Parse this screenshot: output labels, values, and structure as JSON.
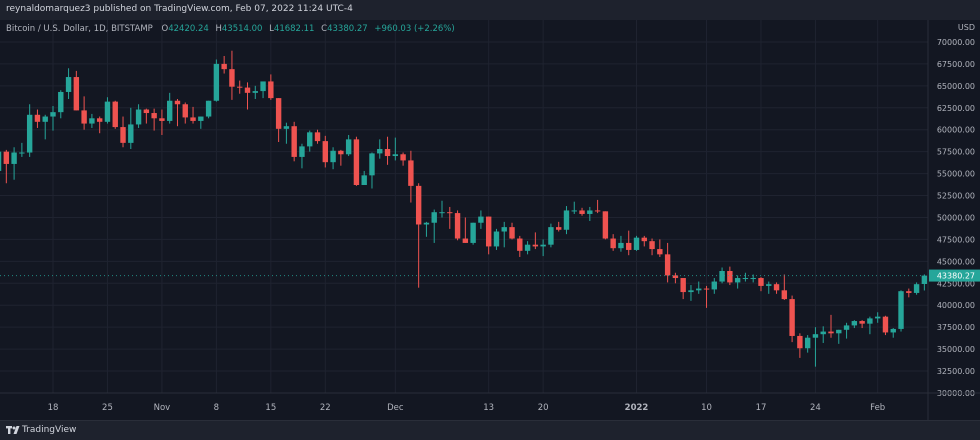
{
  "header": {
    "published_text": "reynaldomarquez3 published on TradingView.com, Feb 07, 2022 11:24 UTC-4"
  },
  "legend": {
    "symbol": "Bitcoin / U.S. Dollar, 1D, BITSTAMP",
    "open_label": "O",
    "open": "42420.24",
    "high_label": "H",
    "high": "43514.00",
    "low_label": "L",
    "low": "41682.11",
    "close_label": "C",
    "close": "43380.27",
    "change": "+960.03 (+2.26%)"
  },
  "footer": {
    "brand": "TradingView"
  },
  "colors": {
    "up": "#26a69a",
    "down": "#ef5350",
    "background": "#131722",
    "grid": "#1f2330",
    "axis_text": "#b2b5be",
    "price_tag": "#26a69a"
  },
  "chart_data": {
    "type": "candlestick",
    "title": "Bitcoin / U.S. Dollar, 1D, BITSTAMP",
    "currency_label": "USD",
    "last_price": "43380.27",
    "y_ticks": [
      "70000.00",
      "67500.00",
      "65000.00",
      "62500.00",
      "60000.00",
      "57500.00",
      "55000.00",
      "52500.00",
      "50000.00",
      "47500.00",
      "45000.00",
      "42500.00",
      "40000.00",
      "37500.00",
      "35000.00",
      "32500.00",
      "30000.00"
    ],
    "ylim": [
      30000,
      72500
    ],
    "x_ticks": [
      "18",
      "25",
      "Nov",
      "8",
      "15",
      "22",
      "Dec",
      "13",
      "20",
      "2022",
      "10",
      "17",
      "24",
      "Feb"
    ],
    "grid": true,
    "candles": [
      {
        "date": "2021-10-11",
        "o": 55300,
        "h": 57800,
        "l": 54400,
        "c": 57500
      },
      {
        "date": "2021-10-12",
        "o": 57500,
        "h": 57700,
        "l": 53900,
        "c": 56100
      },
      {
        "date": "2021-10-13",
        "o": 56100,
        "h": 58000,
        "l": 54300,
        "c": 57400
      },
      {
        "date": "2021-10-14",
        "o": 57400,
        "h": 58500,
        "l": 56900,
        "c": 57400
      },
      {
        "date": "2021-10-15",
        "o": 57400,
        "h": 62900,
        "l": 56900,
        "c": 61700
      },
      {
        "date": "2021-10-16",
        "o": 61700,
        "h": 62300,
        "l": 60200,
        "c": 60900
      },
      {
        "date": "2021-10-17",
        "o": 60900,
        "h": 61700,
        "l": 58900,
        "c": 61500
      },
      {
        "date": "2021-10-18",
        "o": 61500,
        "h": 62700,
        "l": 59900,
        "c": 62000
      },
      {
        "date": "2021-10-19",
        "o": 62000,
        "h": 64500,
        "l": 61300,
        "c": 64300
      },
      {
        "date": "2021-10-20",
        "o": 64300,
        "h": 67000,
        "l": 63500,
        "c": 66000
      },
      {
        "date": "2021-10-21",
        "o": 66000,
        "h": 66700,
        "l": 62200,
        "c": 62200
      },
      {
        "date": "2021-10-22",
        "o": 62200,
        "h": 63800,
        "l": 60000,
        "c": 60700
      },
      {
        "date": "2021-10-23",
        "o": 60700,
        "h": 61800,
        "l": 60200,
        "c": 61300
      },
      {
        "date": "2021-10-24",
        "o": 61300,
        "h": 61500,
        "l": 59600,
        "c": 60900
      },
      {
        "date": "2021-10-25",
        "o": 60900,
        "h": 63700,
        "l": 60700,
        "c": 63200
      },
      {
        "date": "2021-10-26",
        "o": 63200,
        "h": 63300,
        "l": 60100,
        "c": 60300
      },
      {
        "date": "2021-10-27",
        "o": 60300,
        "h": 61500,
        "l": 58000,
        "c": 58500
      },
      {
        "date": "2021-10-28",
        "o": 58500,
        "h": 62500,
        "l": 57800,
        "c": 60600
      },
      {
        "date": "2021-10-29",
        "o": 60600,
        "h": 62900,
        "l": 60200,
        "c": 62300
      },
      {
        "date": "2021-10-30",
        "o": 62300,
        "h": 62400,
        "l": 60700,
        "c": 61900
      },
      {
        "date": "2021-10-31",
        "o": 61900,
        "h": 62400,
        "l": 59900,
        "c": 61300
      },
      {
        "date": "2021-11-01",
        "o": 61300,
        "h": 62300,
        "l": 59400,
        "c": 61000
      },
      {
        "date": "2021-11-02",
        "o": 61000,
        "h": 64200,
        "l": 60700,
        "c": 63300
      },
      {
        "date": "2021-11-03",
        "o": 63300,
        "h": 63500,
        "l": 60400,
        "c": 62900
      },
      {
        "date": "2021-11-04",
        "o": 62900,
        "h": 63100,
        "l": 60700,
        "c": 61400
      },
      {
        "date": "2021-11-05",
        "o": 61400,
        "h": 62600,
        "l": 60700,
        "c": 61000
      },
      {
        "date": "2021-11-06",
        "o": 61000,
        "h": 61500,
        "l": 60100,
        "c": 61500
      },
      {
        "date": "2021-11-07",
        "o": 61500,
        "h": 63300,
        "l": 61300,
        "c": 63300
      },
      {
        "date": "2021-11-08",
        "o": 63300,
        "h": 68000,
        "l": 63200,
        "c": 67500
      },
      {
        "date": "2021-11-09",
        "o": 67500,
        "h": 68400,
        "l": 66400,
        "c": 66900
      },
      {
        "date": "2021-11-10",
        "o": 66900,
        "h": 69000,
        "l": 63400,
        "c": 64900
      },
      {
        "date": "2021-11-11",
        "o": 64900,
        "h": 65600,
        "l": 64100,
        "c": 64800
      },
      {
        "date": "2021-11-12",
        "o": 64800,
        "h": 65400,
        "l": 62300,
        "c": 64200
      },
      {
        "date": "2021-11-13",
        "o": 64200,
        "h": 65000,
        "l": 63500,
        "c": 64400
      },
      {
        "date": "2021-11-14",
        "o": 64400,
        "h": 65300,
        "l": 63600,
        "c": 65500
      },
      {
        "date": "2021-11-15",
        "o": 65500,
        "h": 66300,
        "l": 63400,
        "c": 63600
      },
      {
        "date": "2021-11-16",
        "o": 63600,
        "h": 63600,
        "l": 58600,
        "c": 60100
      },
      {
        "date": "2021-11-17",
        "o": 60100,
        "h": 60800,
        "l": 58400,
        "c": 60400
      },
      {
        "date": "2021-11-18",
        "o": 60400,
        "h": 60900,
        "l": 56400,
        "c": 56900
      },
      {
        "date": "2021-11-19",
        "o": 56900,
        "h": 58400,
        "l": 55600,
        "c": 58100
      },
      {
        "date": "2021-11-20",
        "o": 58100,
        "h": 59900,
        "l": 57500,
        "c": 59700
      },
      {
        "date": "2021-11-21",
        "o": 59700,
        "h": 60000,
        "l": 58400,
        "c": 58700
      },
      {
        "date": "2021-11-22",
        "o": 58700,
        "h": 59300,
        "l": 55700,
        "c": 56300
      },
      {
        "date": "2021-11-23",
        "o": 56300,
        "h": 58000,
        "l": 55500,
        "c": 57600
      },
      {
        "date": "2021-11-24",
        "o": 57600,
        "h": 57700,
        "l": 55900,
        "c": 57200
      },
      {
        "date": "2021-11-25",
        "o": 57200,
        "h": 59400,
        "l": 57000,
        "c": 58900
      },
      {
        "date": "2021-11-26",
        "o": 58900,
        "h": 59200,
        "l": 53600,
        "c": 53700
      },
      {
        "date": "2021-11-27",
        "o": 53700,
        "h": 55300,
        "l": 53700,
        "c": 54800
      },
      {
        "date": "2021-11-28",
        "o": 54800,
        "h": 57400,
        "l": 53300,
        "c": 57300
      },
      {
        "date": "2021-11-29",
        "o": 57300,
        "h": 58900,
        "l": 56700,
        "c": 57800
      },
      {
        "date": "2021-11-30",
        "o": 57800,
        "h": 59200,
        "l": 56000,
        "c": 57000
      },
      {
        "date": "2021-12-01",
        "o": 57000,
        "h": 59100,
        "l": 56500,
        "c": 57200
      },
      {
        "date": "2021-12-02",
        "o": 57200,
        "h": 57400,
        "l": 55900,
        "c": 56500
      },
      {
        "date": "2021-12-03",
        "o": 56500,
        "h": 57600,
        "l": 51700,
        "c": 53600
      },
      {
        "date": "2021-12-04",
        "o": 53600,
        "h": 53900,
        "l": 42000,
        "c": 49200
      },
      {
        "date": "2021-12-05",
        "o": 49200,
        "h": 49500,
        "l": 47800,
        "c": 49400
      },
      {
        "date": "2021-12-06",
        "o": 49400,
        "h": 50900,
        "l": 47100,
        "c": 50600
      },
      {
        "date": "2021-12-07",
        "o": 50600,
        "h": 51900,
        "l": 50000,
        "c": 50600
      },
      {
        "date": "2021-12-08",
        "o": 50600,
        "h": 51200,
        "l": 48700,
        "c": 50500
      },
      {
        "date": "2021-12-09",
        "o": 50500,
        "h": 50800,
        "l": 47400,
        "c": 47600
      },
      {
        "date": "2021-12-10",
        "o": 47600,
        "h": 50000,
        "l": 47100,
        "c": 47100
      },
      {
        "date": "2021-12-11",
        "o": 47100,
        "h": 49400,
        "l": 46900,
        "c": 49400
      },
      {
        "date": "2021-12-12",
        "o": 49400,
        "h": 50800,
        "l": 48700,
        "c": 50100
      },
      {
        "date": "2021-12-13",
        "o": 50100,
        "h": 50100,
        "l": 45800,
        "c": 46700
      },
      {
        "date": "2021-12-14",
        "o": 46700,
        "h": 48700,
        "l": 46300,
        "c": 48400
      },
      {
        "date": "2021-12-15",
        "o": 48400,
        "h": 49500,
        "l": 46600,
        "c": 48900
      },
      {
        "date": "2021-12-16",
        "o": 48900,
        "h": 49400,
        "l": 47500,
        "c": 47600
      },
      {
        "date": "2021-12-17",
        "o": 47600,
        "h": 47900,
        "l": 45500,
        "c": 46200
      },
      {
        "date": "2021-12-18",
        "o": 46200,
        "h": 47300,
        "l": 45800,
        "c": 46900
      },
      {
        "date": "2021-12-19",
        "o": 46900,
        "h": 48300,
        "l": 46400,
        "c": 46700
      },
      {
        "date": "2021-12-20",
        "o": 46700,
        "h": 47500,
        "l": 45600,
        "c": 46900
      },
      {
        "date": "2021-12-21",
        "o": 46900,
        "h": 49300,
        "l": 46600,
        "c": 48900
      },
      {
        "date": "2021-12-22",
        "o": 48900,
        "h": 49500,
        "l": 48400,
        "c": 48600
      },
      {
        "date": "2021-12-23",
        "o": 48600,
        "h": 51300,
        "l": 48100,
        "c": 50800
      },
      {
        "date": "2021-12-24",
        "o": 50800,
        "h": 51800,
        "l": 50400,
        "c": 50800
      },
      {
        "date": "2021-12-25",
        "o": 50800,
        "h": 51100,
        "l": 50200,
        "c": 50400
      },
      {
        "date": "2021-12-26",
        "o": 50400,
        "h": 51200,
        "l": 49600,
        "c": 50800
      },
      {
        "date": "2021-12-27",
        "o": 50800,
        "h": 52000,
        "l": 50500,
        "c": 50700
      },
      {
        "date": "2021-12-28",
        "o": 50700,
        "h": 50700,
        "l": 47500,
        "c": 47600
      },
      {
        "date": "2021-12-29",
        "o": 47600,
        "h": 48100,
        "l": 46200,
        "c": 46500
      },
      {
        "date": "2021-12-30",
        "o": 46500,
        "h": 47900,
        "l": 46100,
        "c": 47100
      },
      {
        "date": "2021-12-31",
        "o": 47100,
        "h": 48500,
        "l": 45700,
        "c": 46300
      },
      {
        "date": "2022-01-01",
        "o": 46300,
        "h": 47900,
        "l": 46200,
        "c": 47700
      },
      {
        "date": "2022-01-02",
        "o": 47700,
        "h": 47900,
        "l": 46700,
        "c": 47300
      },
      {
        "date": "2022-01-03",
        "o": 47300,
        "h": 47600,
        "l": 45700,
        "c": 46400
      },
      {
        "date": "2022-01-04",
        "o": 46400,
        "h": 47500,
        "l": 45500,
        "c": 45800
      },
      {
        "date": "2022-01-05",
        "o": 45800,
        "h": 47100,
        "l": 42600,
        "c": 43400
      },
      {
        "date": "2022-01-06",
        "o": 43400,
        "h": 43700,
        "l": 42500,
        "c": 43100
      },
      {
        "date": "2022-01-07",
        "o": 43100,
        "h": 43100,
        "l": 40700,
        "c": 41500
      },
      {
        "date": "2022-01-08",
        "o": 41500,
        "h": 42300,
        "l": 40500,
        "c": 41700
      },
      {
        "date": "2022-01-09",
        "o": 41700,
        "h": 42700,
        "l": 41300,
        "c": 41900
      },
      {
        "date": "2022-01-10",
        "o": 41900,
        "h": 42200,
        "l": 39700,
        "c": 41800
      },
      {
        "date": "2022-01-11",
        "o": 41800,
        "h": 43100,
        "l": 41300,
        "c": 42700
      },
      {
        "date": "2022-01-12",
        "o": 42700,
        "h": 44300,
        "l": 42500,
        "c": 43900
      },
      {
        "date": "2022-01-13",
        "o": 43900,
        "h": 44400,
        "l": 42300,
        "c": 42600
      },
      {
        "date": "2022-01-14",
        "o": 42600,
        "h": 43400,
        "l": 41900,
        "c": 43100
      },
      {
        "date": "2022-01-15",
        "o": 43100,
        "h": 43700,
        "l": 42700,
        "c": 43100
      },
      {
        "date": "2022-01-16",
        "o": 43100,
        "h": 43500,
        "l": 42600,
        "c": 43100
      },
      {
        "date": "2022-01-17",
        "o": 43100,
        "h": 43200,
        "l": 41600,
        "c": 42200
      },
      {
        "date": "2022-01-18",
        "o": 42200,
        "h": 42700,
        "l": 41300,
        "c": 42400
      },
      {
        "date": "2022-01-19",
        "o": 42400,
        "h": 42600,
        "l": 41300,
        "c": 41700
      },
      {
        "date": "2022-01-20",
        "o": 41700,
        "h": 43500,
        "l": 40600,
        "c": 40700
      },
      {
        "date": "2022-01-21",
        "o": 40700,
        "h": 41100,
        "l": 35800,
        "c": 36500
      },
      {
        "date": "2022-01-22",
        "o": 36500,
        "h": 36800,
        "l": 34000,
        "c": 35100
      },
      {
        "date": "2022-01-23",
        "o": 35100,
        "h": 36600,
        "l": 34600,
        "c": 36300
      },
      {
        "date": "2022-01-24",
        "o": 36300,
        "h": 37500,
        "l": 33000,
        "c": 36700
      },
      {
        "date": "2022-01-25",
        "o": 36700,
        "h": 37600,
        "l": 35700,
        "c": 37000
      },
      {
        "date": "2022-01-26",
        "o": 37000,
        "h": 38900,
        "l": 36300,
        "c": 36800
      },
      {
        "date": "2022-01-27",
        "o": 36800,
        "h": 37200,
        "l": 35600,
        "c": 37200
      },
      {
        "date": "2022-01-28",
        "o": 37200,
        "h": 38000,
        "l": 36200,
        "c": 37700
      },
      {
        "date": "2022-01-29",
        "o": 37700,
        "h": 38300,
        "l": 37400,
        "c": 38200
      },
      {
        "date": "2022-01-30",
        "o": 38200,
        "h": 38300,
        "l": 37400,
        "c": 37900
      },
      {
        "date": "2022-01-31",
        "o": 37900,
        "h": 38700,
        "l": 36700,
        "c": 38500
      },
      {
        "date": "2022-02-01",
        "o": 38500,
        "h": 39200,
        "l": 38000,
        "c": 38700
      },
      {
        "date": "2022-02-02",
        "o": 38700,
        "h": 38800,
        "l": 36600,
        "c": 36900
      },
      {
        "date": "2022-02-03",
        "o": 36900,
        "h": 37400,
        "l": 36300,
        "c": 37300
      },
      {
        "date": "2022-02-04",
        "o": 37300,
        "h": 41700,
        "l": 37000,
        "c": 41600
      },
      {
        "date": "2022-02-05",
        "o": 41600,
        "h": 41900,
        "l": 40900,
        "c": 41400
      },
      {
        "date": "2022-02-06",
        "o": 41400,
        "h": 42600,
        "l": 41200,
        "c": 42400
      },
      {
        "date": "2022-02-07",
        "o": 42420.24,
        "h": 43514,
        "l": 41682.11,
        "c": 43380.27
      }
    ]
  }
}
